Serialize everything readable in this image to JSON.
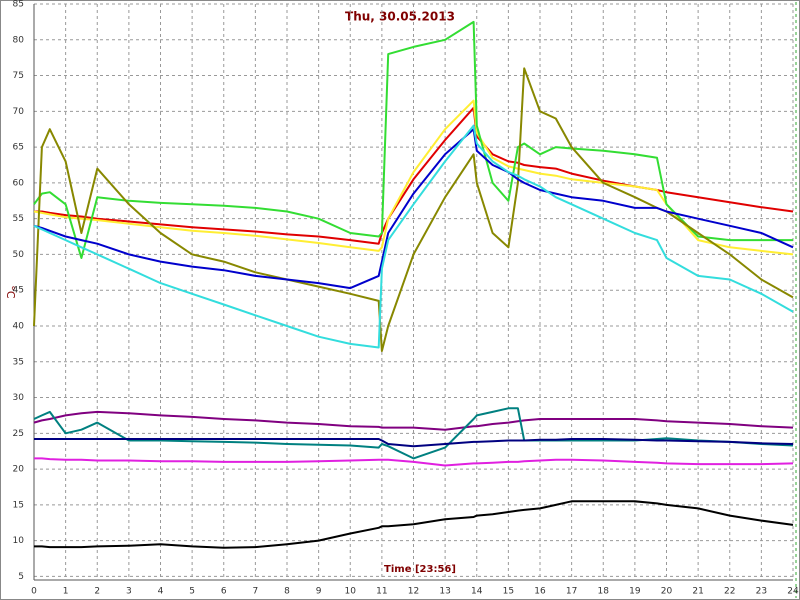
{
  "chart_data": {
    "type": "line",
    "title": "Thu, 30.05.2013",
    "x_label": "Time [23:56]",
    "y_label": "°C",
    "x": [
      0,
      0.25,
      0.5,
      1,
      1.5,
      2,
      3,
      4,
      5,
      6,
      7,
      8,
      9,
      10,
      10.9,
      11,
      11.2,
      12,
      13,
      13.9,
      14,
      14.5,
      15,
      15.3,
      15.5,
      16,
      16.5,
      17,
      18,
      19,
      19.7,
      20,
      21,
      22,
      23,
      24
    ],
    "xlim": [
      0,
      24
    ],
    "xticks": [
      0,
      1,
      2,
      3,
      4,
      5,
      6,
      7,
      8,
      9,
      10,
      11,
      12,
      13,
      14,
      15,
      16,
      17,
      18,
      19,
      20,
      21,
      22,
      23,
      24
    ],
    "ylim": [
      4.5,
      85
    ],
    "yticks": [
      5,
      10,
      15,
      20,
      25,
      30,
      35,
      40,
      45,
      50,
      55,
      60,
      65,
      70,
      75,
      80,
      85
    ],
    "grid": true,
    "series": [
      {
        "color": "#e00000",
        "values": [
          56,
          56,
          55.8,
          55.5,
          55.3,
          55,
          54.6,
          54.2,
          53.8,
          53.5,
          53.2,
          52.8,
          52.5,
          52,
          51.5,
          53,
          55,
          60.5,
          66,
          70.5,
          66.5,
          64,
          63,
          62.8,
          62.5,
          62.2,
          62,
          61.3,
          60.3,
          59.5,
          59,
          58.7,
          58,
          57.3,
          56.6,
          56
        ]
      },
      {
        "color": "#ffee33",
        "values": [
          56,
          55.8,
          55.6,
          55.2,
          55,
          54.8,
          54.3,
          53.8,
          53.3,
          53,
          52.6,
          52.1,
          51.6,
          51,
          50.5,
          51,
          55,
          61.5,
          67.5,
          71.5,
          67,
          63.5,
          62.3,
          62,
          61.8,
          61.3,
          61,
          60.5,
          60,
          59.5,
          59,
          57,
          52,
          51,
          50.5,
          50
        ]
      },
      {
        "color": "#33dd33",
        "values": [
          57,
          58.5,
          58.7,
          57,
          49.5,
          58,
          57.5,
          57.2,
          57,
          56.8,
          56.5,
          56,
          55,
          53,
          52.5,
          53,
          78,
          79,
          80,
          82.5,
          68,
          60,
          57.5,
          65,
          65.5,
          64,
          65,
          64.8,
          64.5,
          64,
          63.5,
          57,
          52.5,
          52,
          52,
          52
        ]
      },
      {
        "color": "#888800",
        "values": [
          40,
          65,
          67.5,
          63,
          53,
          62,
          57,
          53,
          50,
          49,
          47.5,
          46.5,
          45.5,
          44.5,
          43.5,
          36.5,
          40,
          50,
          58,
          64,
          60,
          53,
          51,
          60,
          76,
          70,
          69,
          65,
          60,
          58,
          56.5,
          56,
          53,
          50,
          46.5,
          44
        ]
      },
      {
        "color": "#0000cc",
        "values": [
          54,
          53.7,
          53.3,
          52.5,
          52,
          51.5,
          50,
          49,
          48.3,
          47.8,
          47,
          46.5,
          46,
          45.3,
          47,
          49,
          53,
          58.5,
          64,
          67.5,
          64.5,
          62.5,
          61.5,
          60.5,
          60,
          59,
          58.5,
          58,
          57.5,
          56.5,
          56.5,
          56,
          55,
          54,
          53,
          51
        ]
      },
      {
        "color": "#33dddd",
        "values": [
          54,
          53.5,
          53,
          52,
          51,
          50,
          48,
          46,
          44.5,
          43,
          41.5,
          40,
          38.5,
          37.5,
          37,
          48,
          52,
          57,
          63,
          68,
          65.5,
          63,
          61.5,
          61,
          60.5,
          59.5,
          58,
          57,
          55,
          53,
          52,
          49.5,
          47,
          46.5,
          44.5,
          42
        ]
      },
      {
        "color": "#800080",
        "values": [
          26.5,
          26.8,
          27,
          27.5,
          27.8,
          28,
          27.8,
          27.5,
          27.3,
          27,
          26.8,
          26.5,
          26.3,
          26,
          25.9,
          25.8,
          25.8,
          25.8,
          25.5,
          26,
          26,
          26.3,
          26.5,
          26.7,
          26.8,
          27,
          27,
          27,
          27,
          27,
          26.8,
          26.7,
          26.5,
          26.3,
          26,
          25.8
        ]
      },
      {
        "color": "#008080",
        "values": [
          27,
          27.5,
          28,
          25,
          25.5,
          26.5,
          24,
          24,
          23.9,
          23.8,
          23.7,
          23.5,
          23.4,
          23.3,
          23,
          23.5,
          23.2,
          21.5,
          23,
          27,
          27.5,
          28,
          28.5,
          28.5,
          24,
          24,
          24,
          24,
          24,
          24,
          24.2,
          24.3,
          24,
          23.8,
          23.5,
          23.3
        ]
      },
      {
        "color": "#000080",
        "values": [
          24.2,
          24.2,
          24.2,
          24.2,
          24.2,
          24.2,
          24.2,
          24.2,
          24.2,
          24.2,
          24.2,
          24.2,
          24.2,
          24.2,
          24.2,
          24,
          23.5,
          23.2,
          23.5,
          23.8,
          23.8,
          23.9,
          24,
          24,
          24,
          24.1,
          24.1,
          24.2,
          24.2,
          24.1,
          24,
          24,
          23.9,
          23.8,
          23.6,
          23.5
        ]
      },
      {
        "color": "#e020e0",
        "values": [
          21.5,
          21.5,
          21.4,
          21.3,
          21.3,
          21.2,
          21.2,
          21.1,
          21.1,
          21,
          21,
          21,
          21.1,
          21.2,
          21.3,
          21.3,
          21.3,
          21,
          20.5,
          20.8,
          20.8,
          20.9,
          21,
          21,
          21.1,
          21.2,
          21.3,
          21.3,
          21.2,
          21,
          20.9,
          20.8,
          20.7,
          20.7,
          20.7,
          20.8
        ]
      },
      {
        "color": "#000000",
        "values": [
          9.2,
          9.2,
          9.1,
          9.1,
          9.1,
          9.2,
          9.3,
          9.5,
          9.2,
          9,
          9.1,
          9.5,
          10,
          11,
          11.8,
          12,
          12,
          12.3,
          13,
          13.3,
          13.5,
          13.7,
          14,
          14.2,
          14.3,
          14.5,
          15,
          15.5,
          15.5,
          15.5,
          15.2,
          15,
          14.5,
          13.5,
          12.8,
          12.2
        ]
      }
    ]
  }
}
